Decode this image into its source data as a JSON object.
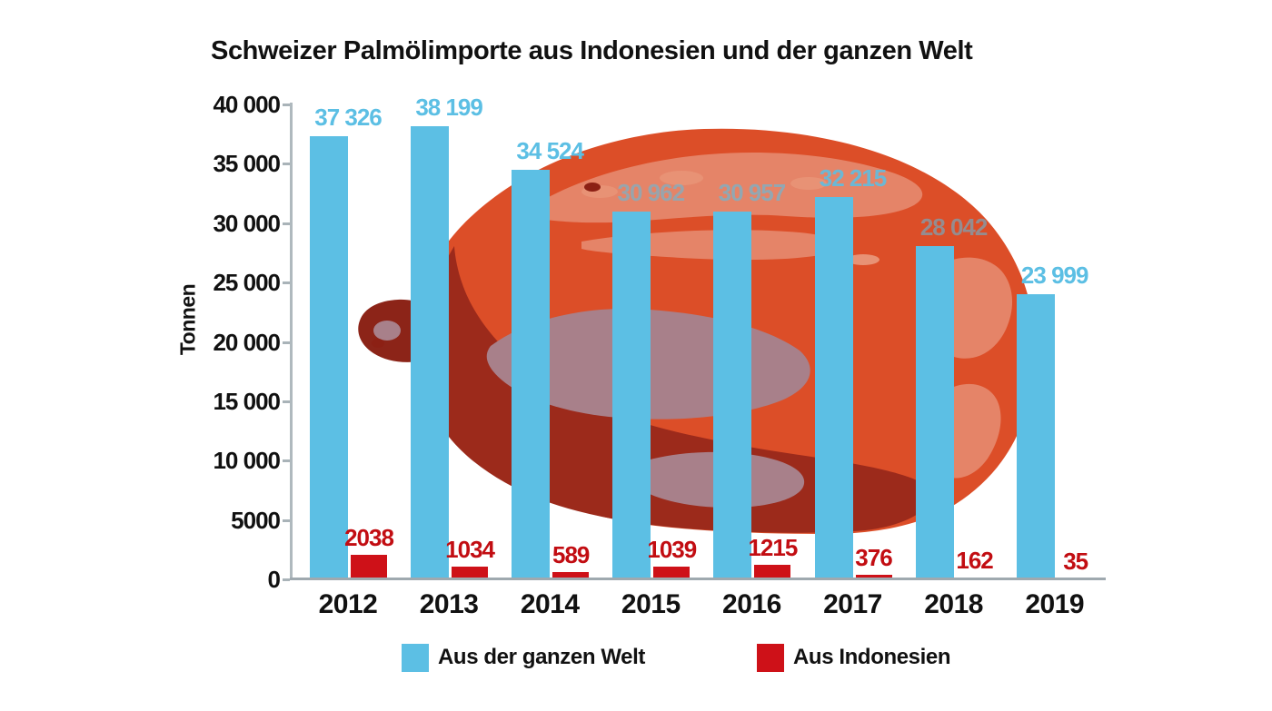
{
  "title": "Schweizer Palmölimporte aus Indonesien und der ganzen Welt",
  "chart_data": {
    "type": "bar",
    "title": "Schweizer Palmölimporte aus Indonesien und der ganzen Welt",
    "xlabel": "",
    "ylabel": "Tonnen",
    "ylim": [
      0,
      40000
    ],
    "grid": false,
    "legend_position": "bottom",
    "categories": [
      "2012",
      "2013",
      "2014",
      "2015",
      "2016",
      "2017",
      "2018",
      "2019"
    ],
    "series": [
      {
        "name": "Aus der ganzen Welt",
        "color": "#5CBFE4",
        "values": [
          37326,
          38199,
          34524,
          30962,
          30957,
          32215,
          28042,
          23999
        ],
        "value_labels": [
          "37 326",
          "38 199",
          "34 524",
          "30 962",
          "30 957",
          "32 215",
          "28 042",
          "23 999"
        ]
      },
      {
        "name": "Aus Indonesien",
        "color": "#CE1118",
        "values": [
          2038,
          1034,
          589,
          1039,
          1215,
          376,
          162,
          35
        ],
        "value_labels": [
          "2038",
          "1034",
          "589",
          "1039",
          "1215",
          "376",
          "162",
          "35"
        ]
      }
    ],
    "yticks": [
      {
        "label": "40 000",
        "value": 40000
      },
      {
        "label": "35 000",
        "value": 35000
      },
      {
        "label": "30 000",
        "value": 30000
      },
      {
        "label": "25 000",
        "value": 25000
      },
      {
        "label": "20 000",
        "value": 20000
      },
      {
        "label": "15 000",
        "value": 15000
      },
      {
        "label": "10 000",
        "value": 10000
      },
      {
        "label": "5000",
        "value": 5000
      },
      {
        "label": "0",
        "value": 0
      }
    ]
  },
  "legend": {
    "items": [
      {
        "label": "Aus der ganzen Welt",
        "color": "#5CBFE4"
      },
      {
        "label": "Aus Indonesien",
        "color": "#CE1118"
      }
    ]
  },
  "colors": {
    "world_bar": "#5CBFE4",
    "world_label": "#5CBFE4",
    "indonesia_bar": "#CE1118",
    "indonesia_label": "#C20D12",
    "axis": "#A9B3B8",
    "text": "#111111",
    "fruit_orange": "#DC4E28",
    "fruit_dark": "#9C2A1B",
    "fruit_darker": "#8C2014",
    "fruit_stem": "#8C2418",
    "fruit_mauve": "#A8808A",
    "fruit_salmon": "#E58468",
    "fruit_salmon_light": "#E89275"
  }
}
